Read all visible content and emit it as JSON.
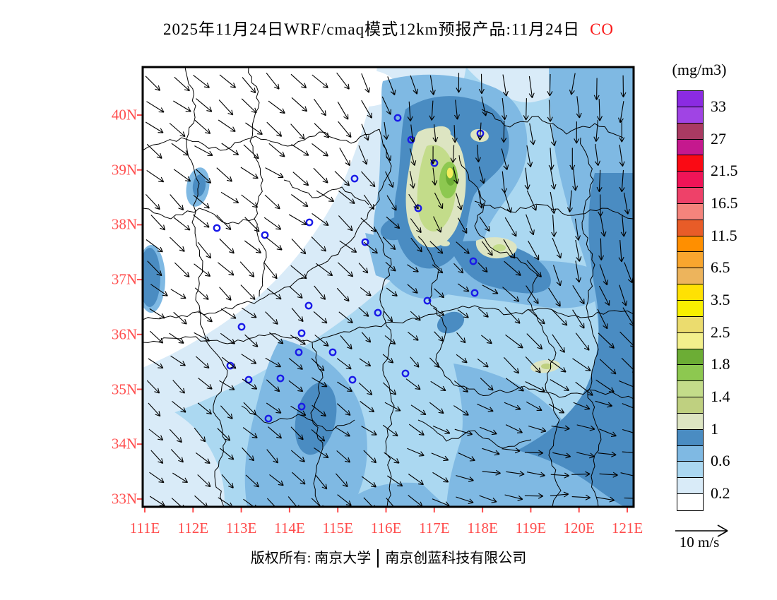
{
  "title": {
    "date_product": "2025年11月24日WRF/cmaq模式12km预报产品:11月24日",
    "pollutant": "CO"
  },
  "colorbar": {
    "unit": "(mg/m3)",
    "labels": [
      "33",
      "27",
      "21.5",
      "16.5",
      "11.5",
      "6.5",
      "3.5",
      "2.5",
      "1.8",
      "1.4",
      "1",
      "0.6",
      "0.2"
    ],
    "colors_top_to_bottom": [
      "#8B2BE2",
      "#A044E4",
      "#AA3A62",
      "#C5188E",
      "#FA0A14",
      "#F01457",
      "#EE4169",
      "#F5847C",
      "#E85C28",
      "#FF8F00",
      "#F9A62E",
      "#EDB45C",
      "#FFE103",
      "#F8F000",
      "#EBDC6E",
      "#F3F08C",
      "#6CAD35",
      "#8DC850",
      "#C3DC8A",
      "#BFD080",
      "#DDE5C2",
      "#4A8CC2",
      "#7FB9E3",
      "#ABD8F1",
      "#D9EBF8",
      "#FFFFFF"
    ]
  },
  "x_axis": {
    "ticks": [
      "111E",
      "112E",
      "113E",
      "114E",
      "115E",
      "116E",
      "117E",
      "118E",
      "119E",
      "120E",
      "121E"
    ],
    "color": "#FF4D4D"
  },
  "y_axis": {
    "ticks": [
      "40N",
      "39N",
      "38N",
      "37N",
      "36N",
      "35N",
      "34N",
      "33N"
    ],
    "color": "#FF4D4D"
  },
  "wind_legend": {
    "label": "10 m/s"
  },
  "footer": {
    "owner": "版权所有: 南京大学",
    "company": "南京创蓝科技有限公司"
  },
  "chart_data": {
    "type": "heatmap",
    "title": "2025年11月24日WRF/cmaq模式12km预报产品:11月24日 CO",
    "variable": "CO",
    "unit": "mg/m3",
    "model": "WRF/cmaq 12km",
    "lon_ticks": [
      "111E",
      "112E",
      "113E",
      "114E",
      "115E",
      "116E",
      "117E",
      "118E",
      "119E",
      "120E",
      "121E"
    ],
    "lat_ticks": [
      "40N",
      "39N",
      "38N",
      "37N",
      "36N",
      "35N",
      "34N",
      "33N"
    ],
    "contour_levels": [
      0.2,
      0.6,
      1,
      1.4,
      1.8,
      2.5,
      3.5,
      6.5,
      11.5,
      16.5,
      21.5,
      27,
      33
    ],
    "legend_position": "right",
    "wind_reference_vector": "10 m/s",
    "features": [
      "Northwest quadrant mostly below 0.2 mg/m3 (white)",
      "Broad 0.2-1 mg/m3 light-blue field over the south and east",
      "Strong hotspot near 117E 39N reaching about 2.5-3.5 mg/m3 (yellow core ringed by greens and dark blue)",
      "Secondary 1-1.8 mg/m3 spots near 118.4E 37.5N and 119.5E 35.3N",
      "0.8-1 mg/m3 dark-blue band along the eastern edge 119.5E-121E",
      "Wind vectors: northwesterlies in the NW, strong northerlies along the NE column, westerlies turning eastward in the SE corner"
    ]
  }
}
